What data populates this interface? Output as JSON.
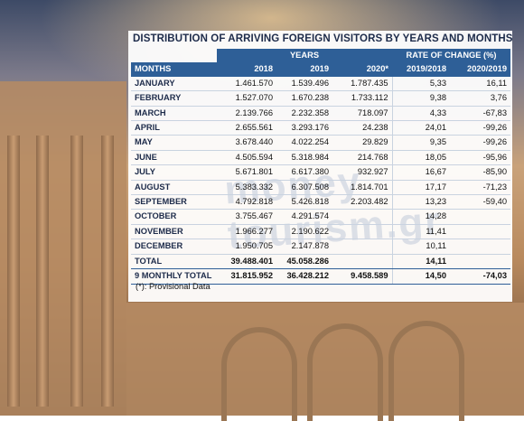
{
  "title": "DISTRIBUTION OF ARRIVING FOREIGN VISITORS BY YEARS AND MONTHS",
  "header": {
    "group_years": "YEARS",
    "group_rate": "RATE OF CHANGE (%)",
    "col_months": "MONTHS",
    "col_2018": "2018",
    "col_2019": "2019",
    "col_2020": "2020*",
    "col_r1": "2019/2018",
    "col_r2": "2020/2019"
  },
  "rows": [
    [
      "JANUARY",
      "1.461.570",
      "1.539.496",
      "1.787.435",
      "5,33",
      "16,11"
    ],
    [
      "FEBRUARY",
      "1.527.070",
      "1.670.238",
      "1.733.112",
      "9,38",
      "3,76"
    ],
    [
      "MARCH",
      "2.139.766",
      "2.232.358",
      "718.097",
      "4,33",
      "-67,83"
    ],
    [
      "APRIL",
      "2.655.561",
      "3.293.176",
      "24.238",
      "24,01",
      "-99,26"
    ],
    [
      "MAY",
      "3.678.440",
      "4.022.254",
      "29.829",
      "9,35",
      "-99,26"
    ],
    [
      "JUNE",
      "4.505.594",
      "5.318.984",
      "214.768",
      "18,05",
      "-95,96"
    ],
    [
      "JULY",
      "5.671.801",
      "6.617.380",
      "932.927",
      "16,67",
      "-85,90"
    ],
    [
      "AUGUST",
      "5.383.332",
      "6.307.508",
      "1.814.701",
      "17,17",
      "-71,23"
    ],
    [
      "SEPTEMBER",
      "4.792.818",
      "5.426.818",
      "2.203.482",
      "13,23",
      "-59,40"
    ],
    [
      "OCTOBER",
      "3.755.467",
      "4.291.574",
      "",
      "14,28",
      ""
    ],
    [
      "NOVEMBER",
      "1.966.277",
      "2.190.622",
      "",
      "11,41",
      ""
    ],
    [
      "DECEMBER",
      "1.950.705",
      "2.147.878",
      "",
      "10,11",
      ""
    ]
  ],
  "total": [
    "TOTAL",
    "39.488.401",
    "45.058.286",
    "",
    "14,11",
    ""
  ],
  "nine_month": [
    "9 MONTHLY TOTAL",
    "31.815.952",
    "36.428.212",
    "9.458.589",
    "14,50",
    "-74,03"
  ],
  "note": "(*): Provisional Data",
  "watermark": "money tourism.gr"
}
